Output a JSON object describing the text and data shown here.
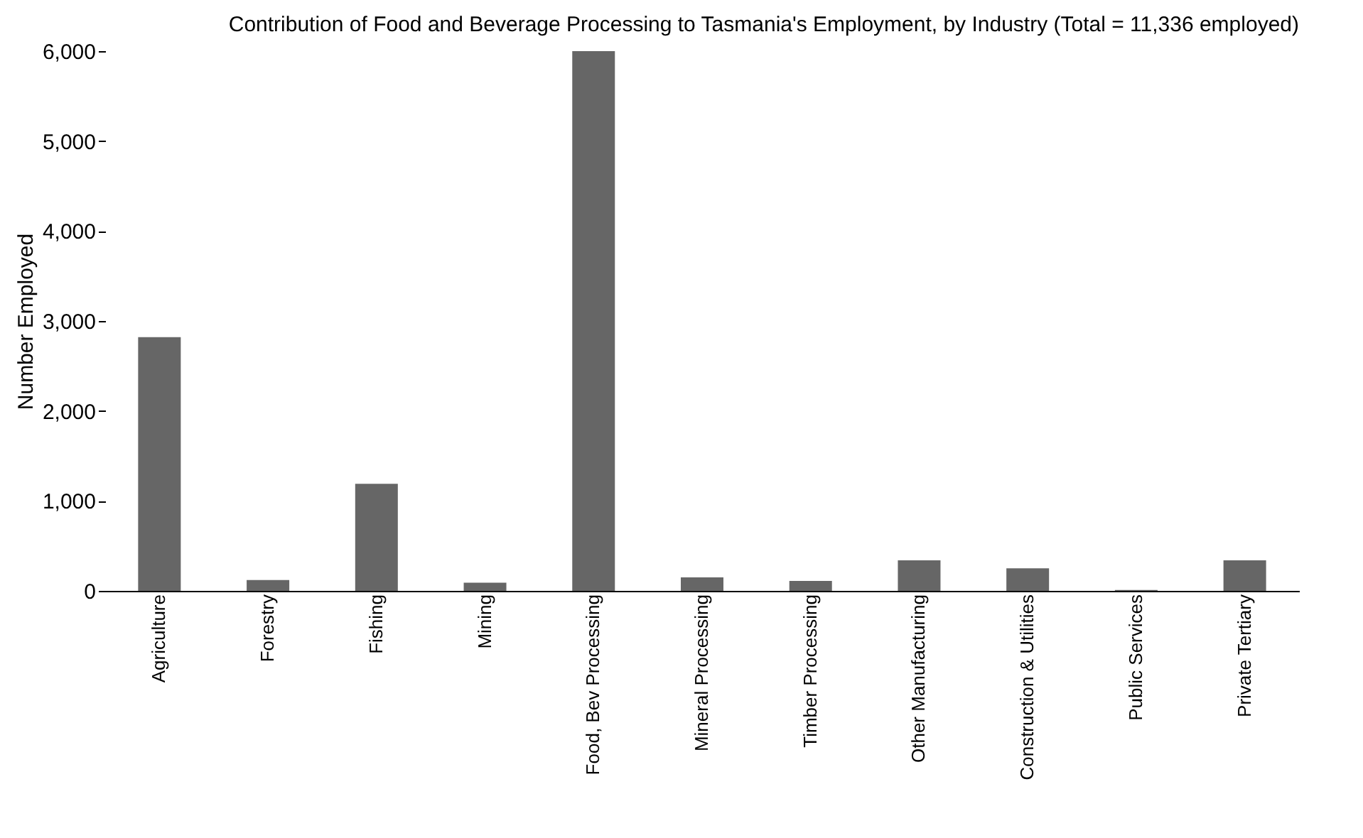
{
  "chart_data": {
    "type": "bar",
    "title": "Contribution of Food and Beverage Processing to Tasmania's Employment, by Industry (Total = 11,336 employed)",
    "ylabel": "Number Employed",
    "categories": [
      "Agriculture",
      "Forestry",
      "Fishing",
      "Mining",
      "Food, Bev Processing",
      "Mineral Processing",
      "Timber Processing",
      "Other Manufacturing",
      "Construction & Utilities",
      "Public Services",
      "Private Tertiary"
    ],
    "values": [
      2820,
      120,
      1190,
      90,
      6000,
      150,
      110,
      340,
      250,
      10,
      340
    ],
    "color": "#666666",
    "ylim": [
      0,
      6000
    ],
    "yticks": [
      0,
      {
        "value": 1000,
        "label": "1,000"
      },
      {
        "value": 2000,
        "label": "2,000"
      },
      {
        "value": 3000,
        "label": "3,000"
      },
      {
        "value": 4000,
        "label": "4,000"
      },
      {
        "value": 5000,
        "label": "5,000"
      },
      {
        "value": 6000,
        "label": "6,000"
      }
    ],
    "grid": false
  }
}
